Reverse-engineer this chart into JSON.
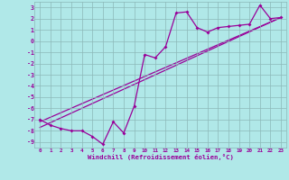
{
  "xlabel": "Windchill (Refroidissement éolien,°C)",
  "background_color": "#b0e8e8",
  "grid_color": "#8cb8b8",
  "line_color": "#990099",
  "xlim": [
    -0.5,
    23.5
  ],
  "ylim": [
    -9.5,
    3.5
  ],
  "xticks": [
    0,
    1,
    2,
    3,
    4,
    5,
    6,
    7,
    8,
    9,
    10,
    11,
    12,
    13,
    14,
    15,
    16,
    17,
    18,
    19,
    20,
    21,
    22,
    23
  ],
  "yticks": [
    3,
    2,
    1,
    0,
    -1,
    -2,
    -3,
    -4,
    -5,
    -6,
    -7,
    -8,
    -9
  ],
  "data_line": [
    [
      0,
      -7.0
    ],
    [
      1,
      -7.5
    ],
    [
      2,
      -7.8
    ],
    [
      3,
      -8.0
    ],
    [
      4,
      -8.0
    ],
    [
      5,
      -8.5
    ],
    [
      6,
      -9.2
    ],
    [
      7,
      -7.2
    ],
    [
      8,
      -8.2
    ],
    [
      9,
      -5.8
    ],
    [
      10,
      -1.2
    ],
    [
      11,
      -1.5
    ],
    [
      12,
      -0.5
    ],
    [
      13,
      2.5
    ],
    [
      14,
      2.6
    ],
    [
      15,
      1.2
    ],
    [
      16,
      0.8
    ],
    [
      17,
      1.2
    ],
    [
      18,
      1.3
    ],
    [
      19,
      1.4
    ],
    [
      20,
      1.5
    ],
    [
      21,
      3.2
    ],
    [
      22,
      2.0
    ],
    [
      23,
      2.1
    ]
  ],
  "line2": [
    [
      0,
      -7.2
    ],
    [
      23,
      2.1
    ]
  ],
  "line3": [
    [
      0,
      -7.7
    ],
    [
      23,
      2.1
    ]
  ]
}
